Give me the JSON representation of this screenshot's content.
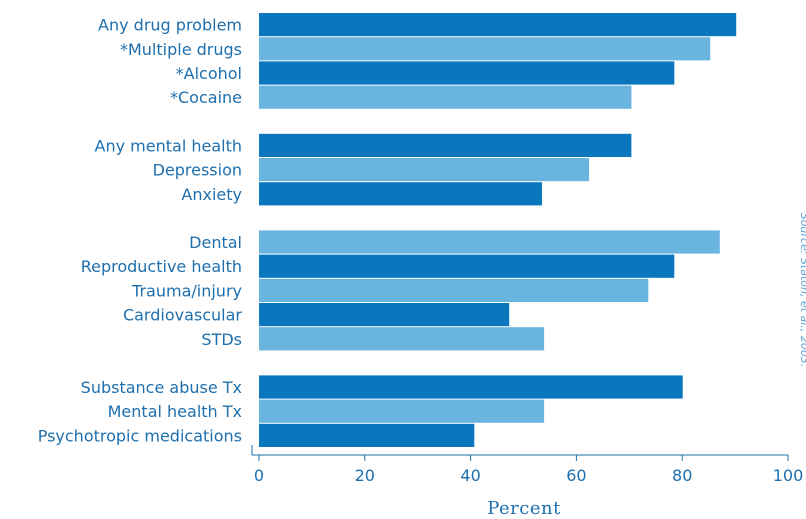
{
  "chart_data": {
    "type": "bar",
    "orientation": "horizontal",
    "xlabel": "Percent",
    "xlim": [
      0,
      100
    ],
    "xticks": [
      "0",
      "20",
      "40",
      "60",
      "80",
      "100"
    ],
    "grid": false,
    "source": "Source: Staton, et al., 2003.",
    "colors": {
      "dark": "#0a76be",
      "light": "#6ab4e0",
      "text": "#1e6fae",
      "axis": "#1e6fae",
      "source": "#5ea3d4"
    },
    "groups": [
      {
        "items": [
          {
            "label": "Any drug problem",
            "value": 90.2,
            "shade": "dark"
          },
          {
            "label": "*Multiple drugs",
            "value": 85.3,
            "shade": "light"
          },
          {
            "label": "*Alcohol",
            "value": 78.5,
            "shade": "dark"
          },
          {
            "label": "*Cocaine",
            "value": 70.4,
            "shade": "light"
          }
        ]
      },
      {
        "items": [
          {
            "label": "Any mental health",
            "value": 70.4,
            "shade": "dark"
          },
          {
            "label": "Depression",
            "value": 62.4,
            "shade": "light"
          },
          {
            "label": "Anxiety",
            "value": 53.5,
            "shade": "dark"
          }
        ]
      },
      {
        "items": [
          {
            "label": "Dental",
            "value": 87.1,
            "shade": "light"
          },
          {
            "label": "Reproductive health",
            "value": 78.5,
            "shade": "dark"
          },
          {
            "label": "Trauma/injury",
            "value": 73.6,
            "shade": "light"
          },
          {
            "label": "Cardiovascular",
            "value": 47.3,
            "shade": "dark"
          },
          {
            "label": "STDs",
            "value": 53.9,
            "shade": "light"
          }
        ]
      },
      {
        "items": [
          {
            "label": "Substance abuse Tx",
            "value": 80.1,
            "shade": "dark"
          },
          {
            "label": "Mental health Tx",
            "value": 53.9,
            "shade": "light"
          },
          {
            "label": "Psychotropic medications",
            "value": 40.7,
            "shade": "dark"
          }
        ]
      }
    ]
  }
}
